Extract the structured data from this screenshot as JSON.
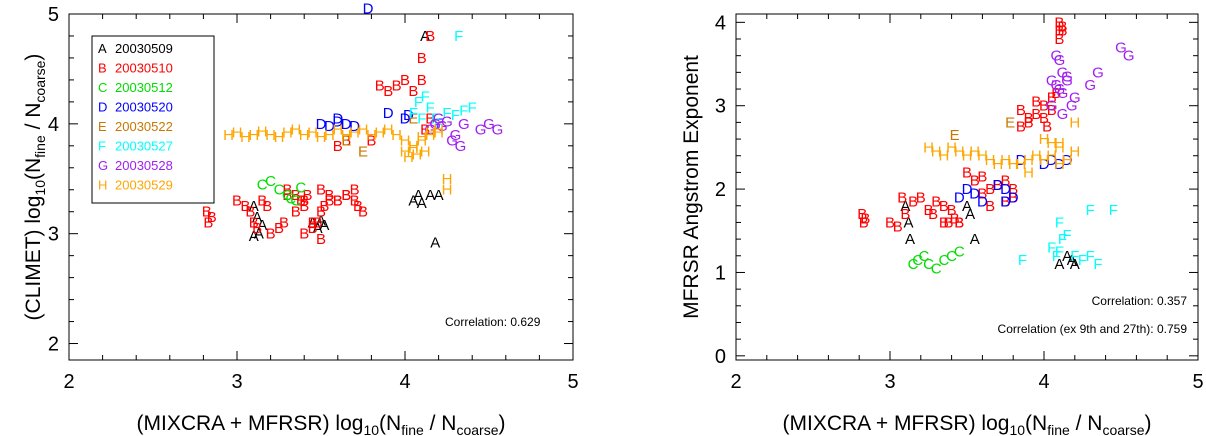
{
  "charts": [
    {
      "type": "scatter",
      "xlim": [
        2,
        5
      ],
      "ylim": [
        1.85,
        5
      ],
      "xticks": [
        "2",
        "3",
        "4",
        "5"
      ],
      "yticks": [
        "2",
        "3",
        "4",
        "5"
      ],
      "xlabel": {
        "pre": "(MIXCRA + MFRSR) log",
        "sub1": "10",
        "mid": "(N",
        "sub2": "fine",
        "mid2": " / N",
        "sub3": "coarse",
        "post": ")"
      },
      "ylabel": {
        "pre": "(CLIMET) log",
        "sub1": "10",
        "mid": "(N",
        "sub2": "fine",
        "mid2": " / N",
        "sub3": "coarse",
        "post": ")"
      },
      "legend": {
        "placement": "top-left",
        "entries": [
          {
            "letter": "A",
            "date": "20030509",
            "color": "#000000"
          },
          {
            "letter": "B",
            "date": "20030510",
            "color": "#ff0000"
          },
          {
            "letter": "C",
            "date": "20030512",
            "color": "#00dd00"
          },
          {
            "letter": "D",
            "date": "20030520",
            "color": "#0000ff"
          },
          {
            "letter": "E",
            "date": "20030522",
            "color": "#c87800"
          },
          {
            "letter": "F",
            "date": "20030527",
            "color": "#00ffff"
          },
          {
            "letter": "G",
            "date": "20030528",
            "color": "#a020f0"
          },
          {
            "letter": "H",
            "date": "20030529",
            "color": "#ffa500"
          }
        ]
      },
      "annotations": [
        "Correlation: 0.629"
      ]
    },
    {
      "type": "scatter",
      "xlim": [
        2,
        5
      ],
      "ylim": [
        -0.05,
        4.1
      ],
      "xticks": [
        "2",
        "3",
        "4",
        "5"
      ],
      "yticks": [
        "0",
        "1",
        "2",
        "3",
        "4"
      ],
      "xlabel": {
        "pre": "(MIXCRA + MFRSR) log",
        "sub1": "10",
        "mid": "(N",
        "sub2": "fine",
        "mid2": " / N",
        "sub3": "coarse",
        "post": ")"
      },
      "ylabel": {
        "pre": "MFRSR Angstrom Exponent"
      },
      "annotations": [
        "Correlation: 0.357",
        "Correlation (ex 9th and 27th): 0.759"
      ]
    }
  ],
  "chart_data": [
    {
      "type": "scatter",
      "xlim": [
        2,
        5
      ],
      "ylim": [
        1.85,
        5
      ],
      "series": [
        {
          "name": "A",
          "label": "20030509",
          "color": "#000000",
          "x": [
            3.1,
            3.12,
            3.15,
            3.13,
            3.1,
            3.45,
            3.48,
            3.5,
            3.52,
            4.05,
            4.08,
            4.1,
            4.15,
            4.18,
            4.2,
            4.12
          ],
          "y": [
            3.25,
            3.15,
            3.08,
            3.0,
            2.98,
            3.1,
            3.05,
            3.12,
            3.08,
            3.3,
            3.35,
            3.28,
            3.35,
            2.92,
            3.35,
            4.8
          ]
        },
        {
          "name": "B",
          "label": "20030510",
          "color": "#ff0000",
          "x": [
            2.82,
            2.85,
            2.83,
            3.0,
            3.05,
            3.08,
            3.1,
            3.12,
            3.15,
            3.18,
            3.2,
            3.25,
            3.28,
            3.3,
            3.35,
            3.38,
            3.4,
            3.42,
            3.45,
            3.48,
            3.5,
            3.52,
            3.55,
            3.6,
            3.65,
            3.7,
            3.72,
            3.75,
            3.3,
            3.35,
            3.4,
            3.5,
            3.55,
            3.6,
            3.65,
            3.7,
            3.4,
            3.5,
            3.85,
            3.9,
            3.95,
            4.0,
            4.05,
            3.6,
            3.65,
            3.8,
            4.12,
            4.15,
            4.1,
            4.1,
            4.15,
            3.45
          ],
          "y": [
            3.2,
            3.15,
            3.1,
            3.3,
            3.25,
            3.2,
            3.1,
            3.05,
            3.3,
            3.25,
            3.0,
            3.05,
            3.1,
            3.35,
            3.2,
            3.3,
            3.25,
            3.35,
            3.1,
            3.1,
            3.2,
            3.25,
            3.3,
            3.3,
            3.35,
            3.3,
            3.25,
            3.2,
            3.4,
            3.35,
            3.3,
            3.4,
            3.35,
            3.3,
            3.35,
            3.4,
            3.0,
            2.95,
            4.35,
            4.3,
            4.35,
            4.4,
            4.3,
            3.8,
            3.85,
            3.85,
            3.95,
            4.05,
            4.4,
            4.6,
            4.8,
            3.05
          ]
        },
        {
          "name": "C",
          "label": "20030512",
          "color": "#00dd00",
          "x": [
            3.15,
            3.2,
            3.25,
            3.3,
            3.35,
            3.38,
            3.32
          ],
          "y": [
            3.45,
            3.48,
            3.4,
            3.35,
            3.3,
            3.42,
            3.32
          ]
        },
        {
          "name": "D",
          "label": "20030520",
          "color": "#0000ff",
          "x": [
            3.5,
            3.55,
            3.6,
            3.65,
            3.7,
            3.6,
            3.78,
            3.9,
            4.0,
            4.02
          ],
          "y": [
            4.0,
            3.98,
            4.02,
            4.0,
            3.98,
            4.05,
            5.05,
            4.1,
            4.05,
            4.08
          ]
        },
        {
          "name": "E",
          "label": "20030522",
          "color": "#c87800",
          "x": [
            3.75,
            4.05,
            3.65
          ],
          "y": [
            3.75,
            4.05,
            3.85
          ]
        },
        {
          "name": "F",
          "label": "20030527",
          "color": "#00ffff",
          "x": [
            4.05,
            4.1,
            4.15,
            4.2,
            4.25,
            4.3,
            4.35,
            4.4,
            4.08,
            4.12,
            4.18,
            4.32
          ],
          "y": [
            4.1,
            4.05,
            4.15,
            4.0,
            4.1,
            4.08,
            4.12,
            4.15,
            4.2,
            4.25,
            4.05,
            4.8
          ]
        },
        {
          "name": "G",
          "label": "20030528",
          "color": "#a020f0",
          "x": [
            4.15,
            4.18,
            4.2,
            4.22,
            4.25,
            4.3,
            4.35,
            4.45,
            4.5,
            4.55,
            4.28,
            4.33
          ],
          "y": [
            3.95,
            4.0,
            4.05,
            3.98,
            4.02,
            3.9,
            4.0,
            3.95,
            4.0,
            3.95,
            3.85,
            3.8
          ]
        },
        {
          "name": "H",
          "label": "20030529",
          "color": "#ffa500",
          "x": [
            2.95,
            3.0,
            3.05,
            3.1,
            3.15,
            3.2,
            3.25,
            3.3,
            3.35,
            3.4,
            3.45,
            3.5,
            3.55,
            3.6,
            3.65,
            3.7,
            3.75,
            3.8,
            3.85,
            3.9,
            3.95,
            4.0,
            4.05,
            4.1,
            4.15,
            4.2,
            4.02,
            4.07,
            4.12,
            4.05,
            4.1,
            4.15,
            4.2,
            4.0,
            4.25,
            4.25
          ],
          "y": [
            3.9,
            3.92,
            3.88,
            3.9,
            3.93,
            3.9,
            3.88,
            3.92,
            3.95,
            3.9,
            3.92,
            3.88,
            3.9,
            3.95,
            3.9,
            3.92,
            3.95,
            3.9,
            3.92,
            3.95,
            3.9,
            3.85,
            3.8,
            3.88,
            3.92,
            3.95,
            3.7,
            3.72,
            3.75,
            3.78,
            3.85,
            3.9,
            3.92,
            3.75,
            3.5,
            3.4
          ]
        }
      ]
    },
    {
      "type": "scatter",
      "xlim": [
        2,
        5
      ],
      "ylim": [
        -0.05,
        4.1
      ],
      "series": [
        {
          "name": "A",
          "label": "20030509",
          "color": "#000000",
          "x": [
            3.1,
            3.12,
            3.13,
            3.5,
            3.52,
            3.55,
            4.1,
            4.15,
            4.18,
            4.2
          ],
          "y": [
            1.8,
            1.6,
            1.4,
            1.8,
            1.7,
            1.4,
            1.1,
            1.2,
            1.15,
            1.1
          ]
        },
        {
          "name": "B",
          "label": "20030510",
          "color": "#ff0000",
          "x": [
            2.82,
            2.84,
            2.83,
            3.0,
            3.05,
            3.08,
            3.1,
            3.15,
            3.2,
            3.25,
            3.28,
            3.3,
            3.35,
            3.38,
            3.4,
            3.42,
            3.45,
            3.5,
            3.55,
            3.6,
            3.65,
            3.7,
            3.75,
            3.8,
            3.85,
            3.9,
            3.95,
            4.0,
            4.05,
            4.1,
            4.12,
            3.6,
            3.65,
            3.75,
            3.8,
            3.9,
            4.0,
            4.05,
            4.08,
            4.1,
            4.1,
            4.12,
            3.95,
            3.85,
            4.02,
            3.35,
            3.45
          ],
          "y": [
            1.7,
            1.65,
            1.6,
            1.6,
            1.55,
            1.9,
            1.7,
            1.85,
            1.9,
            1.75,
            1.7,
            1.85,
            1.8,
            1.6,
            1.75,
            1.65,
            1.6,
            2.2,
            2.1,
            2.15,
            2.0,
            2.05,
            2.1,
            2.0,
            2.75,
            2.8,
            2.9,
            2.85,
            2.95,
            3.8,
            3.9,
            1.95,
            1.8,
            1.85,
            1.9,
            2.85,
            3.0,
            3.1,
            3.15,
            4.0,
            3.9,
            3.95,
            3.05,
            2.95,
            2.75,
            1.6,
            1.6
          ]
        },
        {
          "name": "C",
          "label": "20030512",
          "color": "#00dd00",
          "x": [
            3.15,
            3.18,
            3.22,
            3.25,
            3.3,
            3.35,
            3.4,
            3.45
          ],
          "y": [
            1.1,
            1.15,
            1.2,
            1.1,
            1.05,
            1.15,
            1.2,
            1.25
          ]
        },
        {
          "name": "D",
          "label": "20030520",
          "color": "#0000ff",
          "x": [
            3.45,
            3.5,
            3.55,
            3.6,
            3.7,
            3.75,
            3.8,
            3.85,
            4.0,
            4.05,
            4.1,
            4.15,
            3.75
          ],
          "y": [
            1.9,
            2.0,
            1.95,
            1.85,
            2.05,
            2.0,
            1.9,
            2.35,
            2.3,
            2.35,
            2.3,
            2.35,
            1.85
          ]
        },
        {
          "name": "E",
          "label": "20030522",
          "color": "#c87800",
          "x": [
            3.42,
            3.78
          ],
          "y": [
            2.65,
            2.8
          ]
        },
        {
          "name": "F",
          "label": "20030527",
          "color": "#00ffff",
          "x": [
            3.86,
            4.05,
            4.08,
            4.1,
            4.12,
            4.15,
            4.2,
            4.25,
            4.3,
            4.35,
            4.45,
            4.1,
            4.3
          ],
          "y": [
            1.15,
            1.3,
            1.2,
            1.25,
            1.4,
            1.45,
            1.2,
            1.15,
            1.2,
            1.1,
            1.75,
            1.6,
            1.75
          ]
        },
        {
          "name": "G",
          "label": "20030528",
          "color": "#a020f0",
          "x": [
            4.05,
            4.08,
            4.1,
            4.12,
            4.15,
            4.08,
            4.1,
            4.12,
            4.15,
            4.2,
            4.3,
            4.35,
            4.5,
            4.55,
            4.12,
            4.18,
            4.05
          ],
          "y": [
            3.3,
            3.25,
            3.2,
            3.15,
            3.3,
            3.6,
            3.55,
            3.4,
            3.35,
            3.1,
            3.25,
            3.4,
            3.7,
            3.6,
            2.9,
            3.0,
            3.0
          ]
        },
        {
          "name": "H",
          "label": "20030529",
          "color": "#ffa500",
          "x": [
            3.25,
            3.3,
            3.35,
            3.4,
            3.45,
            3.5,
            3.55,
            3.6,
            3.65,
            3.7,
            3.75,
            3.8,
            3.85,
            3.9,
            3.95,
            4.0,
            4.05,
            4.1,
            4.15,
            4.2,
            4.0,
            4.05,
            4.1,
            4.2,
            3.8,
            3.9,
            4.1
          ],
          "y": [
            2.5,
            2.45,
            2.4,
            2.5,
            2.45,
            2.4,
            2.45,
            2.4,
            2.35,
            2.3,
            2.35,
            2.3,
            2.3,
            2.35,
            2.4,
            2.35,
            2.4,
            2.3,
            2.35,
            2.8,
            2.6,
            2.55,
            2.5,
            2.45,
            2.3,
            2.2,
            2.55
          ]
        }
      ]
    }
  ]
}
